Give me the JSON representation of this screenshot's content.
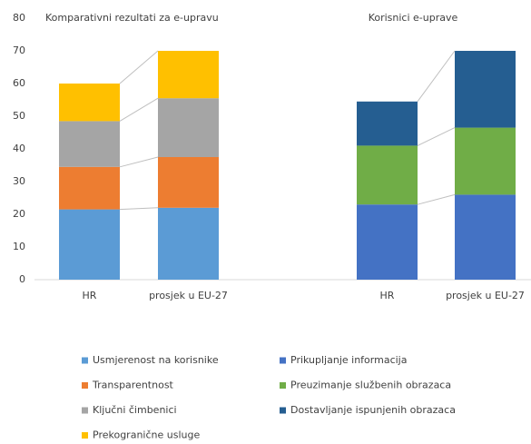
{
  "chart_data": [
    {
      "type": "bar",
      "stacked": true,
      "title": "Komparativni rezultati za e-upravu",
      "categories": [
        "HR",
        "prosjek u EU-27"
      ],
      "series": [
        {
          "name": "Usmjerenost na korisnike",
          "color": "#5b9bd5",
          "values": [
            21.5,
            22
          ]
        },
        {
          "name": "Transparentnost",
          "color": "#ed7d31",
          "values": [
            13,
            15.5
          ]
        },
        {
          "name": "Ključni čimbenici",
          "color": "#a5a5a5",
          "values": [
            14,
            18
          ]
        },
        {
          "name": "Prekogranične usluge",
          "color": "#ffc000",
          "values": [
            11.5,
            14.5
          ]
        }
      ],
      "ylim": [
        0,
        80
      ],
      "yticks": [
        0,
        10,
        20,
        30,
        40,
        50,
        60,
        70,
        80
      ]
    },
    {
      "type": "bar",
      "stacked": true,
      "title": "Korisnici e-uprave",
      "categories": [
        "HR",
        "prosjek u EU-27"
      ],
      "series": [
        {
          "name": "Prikupljanje informacija",
          "color": "#4472c4",
          "values": [
            23,
            26
          ]
        },
        {
          "name": "Preuzimanje službenih obrazaca",
          "color": "#70ad47",
          "values": [
            18,
            20.5
          ]
        },
        {
          "name": "Dostavljanje ispunjenih obrazaca",
          "color": "#255e91",
          "values": [
            13.5,
            23.5
          ]
        }
      ],
      "ylim": [
        0,
        80
      ]
    }
  ]
}
